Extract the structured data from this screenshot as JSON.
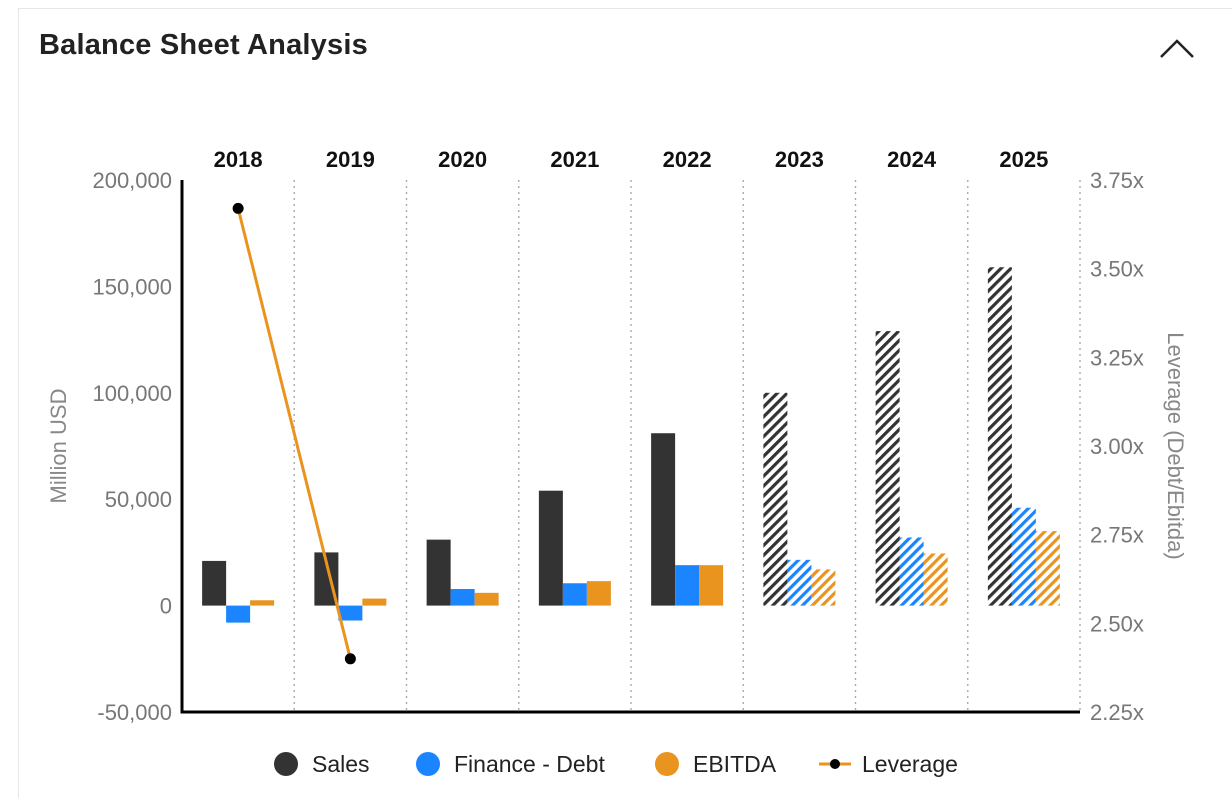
{
  "header": {
    "title": "Balance Sheet Analysis",
    "collapse_icon": "chevron-up-icon"
  },
  "colors": {
    "sales": "#333333",
    "finance_debt": "#1a85ff",
    "ebitda": "#e8941f",
    "leverage_line": "#e8941f",
    "leverage_marker": "#000000",
    "axis": "#000000",
    "tick_label": "#777777",
    "separator": "#aaaaaa"
  },
  "legend": [
    {
      "key": "sales",
      "label": "Sales",
      "icon": "circle"
    },
    {
      "key": "finance_debt",
      "label": "Finance - Debt",
      "icon": "circle"
    },
    {
      "key": "ebitda",
      "label": "EBITDA",
      "icon": "circle"
    },
    {
      "key": "leverage",
      "label": "Leverage",
      "icon": "line-marker"
    }
  ],
  "chart_data": {
    "type": "bar",
    "title": "",
    "categories": [
      "2018",
      "2019",
      "2020",
      "2021",
      "2022",
      "2023",
      "2024",
      "2025"
    ],
    "estimated_from_category": "2023",
    "y_left": {
      "label": "Million USD",
      "ylim": [
        -50000,
        200000
      ],
      "ticks": [
        200000,
        150000,
        100000,
        50000,
        0,
        -50000
      ],
      "tick_labels": [
        "200,000",
        "150,000",
        "100,000",
        "50,000",
        "0",
        "-50,000"
      ]
    },
    "y_right": {
      "label": "Leverage (Debt/Ebitda)",
      "ylim": [
        2.25,
        3.75
      ],
      "ticks": [
        3.75,
        3.5,
        3.25,
        3.0,
        2.75,
        2.5,
        2.25
      ],
      "tick_labels": [
        "3.75x",
        "3.50x",
        "3.25x",
        "3.00x",
        "2.75x",
        "2.50x",
        "2.25x"
      ]
    },
    "series": [
      {
        "name": "Sales",
        "key": "sales",
        "axis": "left",
        "type": "bar",
        "values": [
          21000,
          25000,
          31000,
          54000,
          81000,
          100000,
          129000,
          159000
        ]
      },
      {
        "name": "Finance - Debt",
        "key": "finance_debt",
        "axis": "left",
        "type": "bar",
        "values": [
          -8000,
          -7000,
          7800,
          10500,
          19000,
          21500,
          32000,
          46000
        ]
      },
      {
        "name": "EBITDA",
        "key": "ebitda",
        "axis": "left",
        "type": "bar",
        "values": [
          2500,
          3300,
          6000,
          11500,
          19000,
          17000,
          24500,
          35000
        ]
      },
      {
        "name": "Leverage",
        "key": "leverage",
        "axis": "right",
        "type": "line",
        "values": [
          3.67,
          2.4,
          null,
          null,
          null,
          null,
          null,
          null
        ]
      }
    ],
    "grid": false,
    "legend_position": "bottom"
  }
}
